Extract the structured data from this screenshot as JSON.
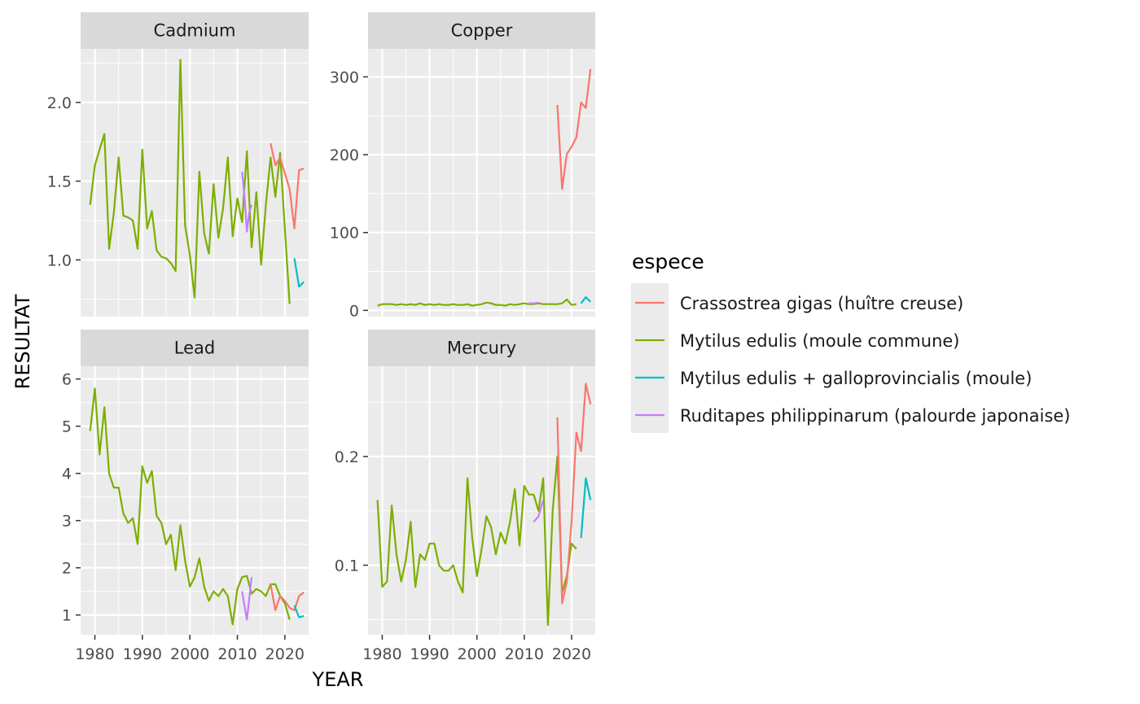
{
  "chart_data": {
    "type": "line",
    "xlabel": "YEAR",
    "ylabel": "RESULTAT",
    "xlim": [
      1977,
      2025
    ],
    "x_ticks": [
      1980,
      1990,
      2000,
      2010,
      2020
    ],
    "x_tick_labels": [
      "1980",
      "1990",
      "2000",
      "2010",
      "2020"
    ],
    "legend": {
      "title": "espece",
      "position": "right",
      "entries": [
        {
          "label": "Crassostrea gigas (huître creuse)",
          "color": "#F8766D"
        },
        {
          "label": "Mytilus edulis (moule commune)",
          "color": "#7CAE00"
        },
        {
          "label": "Mytilus edulis + galloprovincialis (moule)",
          "color": "#00BFC4"
        },
        {
          "label": "Ruditapes philippinarum (palourde japonaise)",
          "color": "#C77CFF"
        }
      ]
    },
    "panels": [
      {
        "strip": "Cadmium",
        "ylim": [
          0.64,
          2.34
        ],
        "y_ticks": [
          1.0,
          1.5,
          2.0
        ],
        "y_tick_labels": [
          "1.0",
          "1.5",
          "2.0"
        ],
        "series": [
          {
            "color": "#7CAE00",
            "x": [
              1979,
              1980,
              1981,
              1982,
              1983,
              1984,
              1985,
              1986,
              1987,
              1988,
              1989,
              1990,
              1991,
              1992,
              1993,
              1994,
              1995,
              1996,
              1997,
              1998,
              1999,
              2000,
              2001,
              2002,
              2003,
              2004,
              2005,
              2006,
              2007,
              2008,
              2009,
              2010,
              2011,
              2012,
              2013,
              2014,
              2015,
              2016,
              2017,
              2018,
              2019,
              2020,
              2021
            ],
            "y": [
              1.35,
              1.6,
              1.7,
              1.8,
              1.07,
              1.3,
              1.65,
              1.28,
              1.27,
              1.25,
              1.07,
              1.7,
              1.2,
              1.31,
              1.06,
              1.02,
              1.01,
              0.98,
              0.93,
              2.27,
              1.22,
              1.03,
              0.76,
              1.56,
              1.17,
              1.04,
              1.48,
              1.14,
              1.33,
              1.65,
              1.15,
              1.39,
              1.24,
              1.69,
              1.08,
              1.43,
              0.97,
              1.35,
              1.65,
              1.4,
              1.68,
              1.2,
              0.72
            ]
          },
          {
            "color": "#C77CFF",
            "x": [
              2011,
              2011.5,
              2012,
              2012.5,
              2013
            ],
            "y": [
              1.56,
              1.4,
              1.18,
              1.3,
              1.35
            ]
          },
          {
            "color": "#F8766D",
            "x": [
              2017,
              2018,
              2019,
              2020,
              2021,
              2022,
              2023,
              2024
            ],
            "y": [
              1.74,
              1.6,
              1.65,
              1.55,
              1.45,
              1.2,
              1.57,
              1.58
            ]
          },
          {
            "color": "#00BFC4",
            "x": [
              2022,
              2023,
              2024
            ],
            "y": [
              1.01,
              0.83,
              0.86
            ]
          }
        ]
      },
      {
        "strip": "Copper",
        "ylim": [
          -8,
          336
        ],
        "y_ticks": [
          0,
          100,
          200,
          300
        ],
        "y_tick_labels": [
          "0",
          "100",
          "200",
          "300"
        ],
        "series": [
          {
            "color": "#7CAE00",
            "x": [
              1979,
              1980,
              1981,
              1982,
              1983,
              1984,
              1985,
              1986,
              1987,
              1988,
              1989,
              1990,
              1991,
              1992,
              1993,
              1994,
              1995,
              1996,
              1997,
              1998,
              1999,
              2000,
              2001,
              2002,
              2003,
              2004,
              2005,
              2006,
              2007,
              2008,
              2009,
              2010,
              2011,
              2012,
              2013,
              2014,
              2015,
              2016,
              2017,
              2018,
              2019,
              2020,
              2021
            ],
            "y": [
              6,
              8,
              8,
              8,
              7,
              8,
              7,
              8,
              7,
              9,
              7,
              8,
              7,
              8,
              7,
              7,
              8,
              7,
              7,
              8,
              6,
              7,
              8,
              10,
              9,
              7,
              7,
              6,
              8,
              7,
              8,
              9,
              8,
              8,
              9,
              8,
              8,
              8,
              8,
              9,
              14,
              7,
              8
            ]
          },
          {
            "color": "#C77CFF",
            "x": [
              2011,
              2012,
              2013
            ],
            "y": [
              9,
              9,
              10
            ]
          },
          {
            "color": "#F8766D",
            "x": [
              2017,
              2018,
              2019,
              2020,
              2021,
              2022,
              2023,
              2024
            ],
            "y": [
              264,
              156,
              201,
              210,
              222,
              267,
              260,
              310
            ]
          },
          {
            "color": "#00BFC4",
            "x": [
              2022,
              2023,
              2024
            ],
            "y": [
              9,
              17,
              11
            ]
          }
        ]
      },
      {
        "strip": "Lead",
        "ylim": [
          0.58,
          6.27
        ],
        "y_ticks": [
          1,
          2,
          3,
          4,
          5,
          6
        ],
        "y_tick_labels": [
          "1",
          "2",
          "3",
          "4",
          "5",
          "6"
        ],
        "series": [
          {
            "color": "#7CAE00",
            "x": [
              1979,
              1980,
              1981,
              1982,
              1983,
              1984,
              1985,
              1986,
              1987,
              1988,
              1989,
              1990,
              1991,
              1992,
              1993,
              1994,
              1995,
              1996,
              1997,
              1998,
              1999,
              2000,
              2001,
              2002,
              2003,
              2004,
              2005,
              2006,
              2007,
              2008,
              2009,
              2010,
              2011,
              2012,
              2013,
              2014,
              2015,
              2016,
              2017,
              2018,
              2019,
              2020,
              2021
            ],
            "y": [
              4.9,
              5.8,
              4.4,
              5.4,
              4.0,
              3.7,
              3.7,
              3.15,
              2.95,
              3.05,
              2.5,
              4.15,
              3.8,
              4.05,
              3.1,
              2.95,
              2.5,
              2.7,
              1.95,
              2.9,
              2.15,
              1.6,
              1.8,
              2.2,
              1.6,
              1.3,
              1.5,
              1.4,
              1.55,
              1.4,
              0.8,
              1.55,
              1.8,
              1.83,
              1.45,
              1.55,
              1.5,
              1.4,
              1.65,
              1.65,
              1.4,
              1.25,
              0.9
            ]
          },
          {
            "color": "#C77CFF",
            "x": [
              2011,
              2012,
              2013
            ],
            "y": [
              1.5,
              0.9,
              1.8
            ]
          },
          {
            "color": "#F8766D",
            "x": [
              2017,
              2018,
              2019,
              2020,
              2021,
              2022,
              2023,
              2024
            ],
            "y": [
              1.65,
              1.1,
              1.4,
              1.3,
              1.15,
              1.1,
              1.4,
              1.48
            ]
          },
          {
            "color": "#00BFC4",
            "x": [
              2022,
              2023,
              2024
            ],
            "y": [
              1.2,
              0.95,
              0.98
            ]
          }
        ]
      },
      {
        "strip": "Mercury",
        "ylim": [
          0.036,
          0.283
        ],
        "y_ticks": [
          0.1,
          0.2
        ],
        "y_tick_labels": [
          "0.1",
          "0.2"
        ],
        "series": [
          {
            "color": "#7CAE00",
            "x": [
              1979,
              1980,
              1981,
              1982,
              1983,
              1984,
              1985,
              1986,
              1987,
              1988,
              1989,
              1990,
              1991,
              1992,
              1993,
              1994,
              1995,
              1996,
              1997,
              1998,
              1999,
              2000,
              2001,
              2002,
              2003,
              2004,
              2005,
              2006,
              2007,
              2008,
              2009,
              2010,
              2011,
              2012,
              2013,
              2014,
              2015,
              2016,
              2017,
              2018,
              2019,
              2020,
              2021
            ],
            "y": [
              0.16,
              0.08,
              0.085,
              0.155,
              0.11,
              0.085,
              0.105,
              0.14,
              0.08,
              0.11,
              0.105,
              0.12,
              0.12,
              0.1,
              0.095,
              0.095,
              0.1,
              0.085,
              0.075,
              0.18,
              0.125,
              0.09,
              0.115,
              0.145,
              0.135,
              0.11,
              0.13,
              0.12,
              0.14,
              0.17,
              0.118,
              0.173,
              0.165,
              0.165,
              0.15,
              0.18,
              0.045,
              0.15,
              0.2,
              0.075,
              0.09,
              0.12,
              0.115
            ]
          },
          {
            "color": "#C77CFF",
            "x": [
              2012,
              2013,
              2014
            ],
            "y": [
              0.14,
              0.145,
              0.16
            ]
          },
          {
            "color": "#F8766D",
            "x": [
              2017,
              2018,
              2019,
              2020,
              2021,
              2022,
              2023,
              2024
            ],
            "y": [
              0.236,
              0.065,
              0.085,
              0.14,
              0.222,
              0.205,
              0.267,
              0.248
            ]
          },
          {
            "color": "#00BFC4",
            "x": [
              2022,
              2023,
              2024
            ],
            "y": [
              0.125,
              0.18,
              0.16
            ]
          }
        ]
      }
    ]
  }
}
